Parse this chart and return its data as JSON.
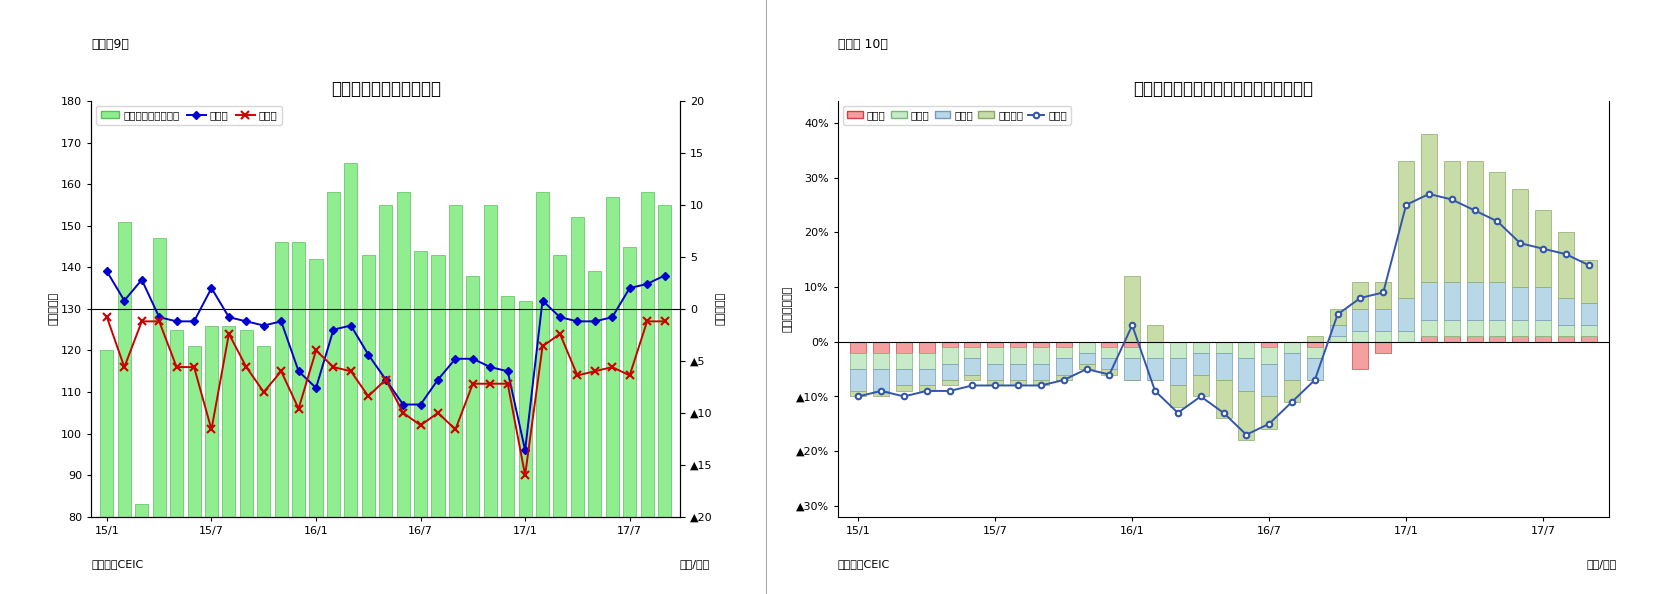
{
  "chart1": {
    "title": "インドネシアの貿易収支",
    "suptitle": "（図表9）",
    "ylabel_left": "（億ドル）",
    "ylabel_right": "（億ドル）",
    "xlabel": "（年/月）",
    "source": "（資料）CEIC",
    "ylim_left": [
      80,
      180
    ],
    "ylim_right": [
      -20,
      20
    ],
    "yticks_left": [
      80,
      90,
      100,
      110,
      120,
      130,
      140,
      150,
      160,
      170,
      180
    ],
    "ytick_labels_right": [
      "20",
      "15",
      "10",
      "5",
      "0",
      "▲5",
      "▲10",
      "▲15",
      "▲20"
    ],
    "xtick_labels": [
      "15/1",
      "15/7",
      "16/1",
      "16/7",
      "17/1",
      "17/7"
    ],
    "export": [
      139,
      132,
      137,
      128,
      127,
      127,
      135,
      128,
      127,
      126,
      127,
      115,
      111,
      125,
      126,
      119,
      113,
      107,
      107,
      113,
      118,
      118,
      116,
      115,
      96,
      132,
      128,
      127,
      127,
      128,
      135,
      136,
      138
    ],
    "import_val": [
      128,
      116,
      127,
      127,
      116,
      116,
      101,
      124,
      116,
      110,
      115,
      106,
      120,
      116,
      115,
      109,
      113,
      105,
      102,
      105,
      101,
      112,
      112,
      112,
      90,
      121,
      124,
      114,
      115,
      116,
      114,
      127,
      127
    ],
    "bar_heights": [
      120,
      151,
      83,
      147,
      125,
      121,
      126,
      126,
      125,
      121,
      146,
      146,
      142,
      158,
      165,
      143,
      155,
      158,
      144,
      143,
      155,
      138,
      155,
      133,
      132,
      158,
      143,
      152,
      139,
      157,
      145,
      158,
      155
    ],
    "bar_color": "#90EE90",
    "bar_edge": "#5BBD5B",
    "export_color": "#0000CD",
    "import_color": "#CC0000",
    "refline_y": 130,
    "legend": [
      "貳易収支（右目盛）",
      "輸出額",
      "輸入額"
    ]
  },
  "chart2": {
    "title": "インドネシア　輸出の伸び率（品目別）",
    "suptitle": "（図表 10）",
    "ylabel_left": "（前年同月比）",
    "xlabel": "（年/月）",
    "source": "（資料）CEIC",
    "ylim": [
      -0.32,
      0.44
    ],
    "yticks": [
      0.4,
      0.3,
      0.2,
      0.1,
      0.0,
      -0.1,
      -0.2,
      -0.3
    ],
    "ytick_labels": [
      "40%",
      "30%",
      "20%",
      "10%",
      "0%",
      "▲10%",
      "▲20%",
      "▲30%"
    ],
    "xtick_labels": [
      "15/1",
      "15/7",
      "16/1",
      "16/7",
      "17/1",
      "17/7"
    ],
    "agri": [
      -0.02,
      -0.02,
      -0.02,
      -0.02,
      -0.01,
      -0.01,
      -0.01,
      -0.01,
      -0.01,
      -0.01,
      0.0,
      -0.01,
      -0.01,
      0.0,
      0.0,
      0.0,
      0.0,
      0.0,
      -0.01,
      0.0,
      -0.01,
      0.0,
      -0.05,
      -0.02,
      0.0,
      0.01,
      0.01,
      0.01,
      0.01,
      0.01,
      0.01,
      0.01,
      0.01
    ],
    "manuf": [
      -0.03,
      -0.03,
      -0.03,
      -0.03,
      -0.03,
      -0.02,
      -0.03,
      -0.03,
      -0.03,
      -0.02,
      -0.02,
      -0.02,
      -0.02,
      -0.03,
      -0.03,
      -0.02,
      -0.02,
      -0.03,
      -0.03,
      -0.02,
      -0.02,
      0.01,
      0.02,
      0.02,
      0.02,
      0.03,
      0.03,
      0.03,
      0.03,
      0.03,
      0.03,
      0.02,
      0.02
    ],
    "mining": [
      -0.04,
      -0.04,
      -0.03,
      -0.03,
      -0.03,
      -0.03,
      -0.03,
      -0.03,
      -0.03,
      -0.03,
      -0.02,
      -0.02,
      -0.04,
      -0.04,
      -0.05,
      -0.04,
      -0.05,
      -0.06,
      -0.06,
      -0.05,
      -0.04,
      0.02,
      0.04,
      0.04,
      0.06,
      0.07,
      0.07,
      0.07,
      0.07,
      0.06,
      0.06,
      0.05,
      0.04
    ],
    "oil_gas": [
      -0.01,
      -0.01,
      -0.01,
      -0.01,
      -0.01,
      -0.01,
      -0.01,
      -0.01,
      -0.01,
      -0.01,
      -0.01,
      -0.01,
      0.12,
      0.03,
      -0.04,
      -0.04,
      -0.07,
      -0.09,
      -0.06,
      -0.04,
      0.01,
      0.03,
      0.05,
      0.05,
      0.25,
      0.27,
      0.22,
      0.22,
      0.2,
      0.18,
      0.14,
      0.12,
      0.08
    ],
    "export_growth": [
      -0.1,
      -0.09,
      -0.1,
      -0.09,
      -0.09,
      -0.08,
      -0.08,
      -0.08,
      -0.08,
      -0.07,
      -0.05,
      -0.06,
      0.03,
      -0.09,
      -0.13,
      -0.1,
      -0.13,
      -0.17,
      -0.15,
      -0.11,
      -0.07,
      0.05,
      0.08,
      0.09,
      0.25,
      0.27,
      0.26,
      0.24,
      0.22,
      0.18,
      0.17,
      0.16,
      0.14
    ],
    "c_agri_face": "#F4A0A0",
    "c_agri_edge": "#CC4444",
    "c_manuf_face": "#C8EAC8",
    "c_manuf_edge": "#77BB77",
    "c_mining_face": "#B8D8E8",
    "c_mining_edge": "#7799BB",
    "c_oilgas_face": "#C8DCA8",
    "c_oilgas_edge": "#88AA66",
    "c_line": "#3355AA",
    "legend": [
      "農産品",
      "製造品",
      "鉱業品",
      "石油ガス",
      "輸出額"
    ]
  }
}
